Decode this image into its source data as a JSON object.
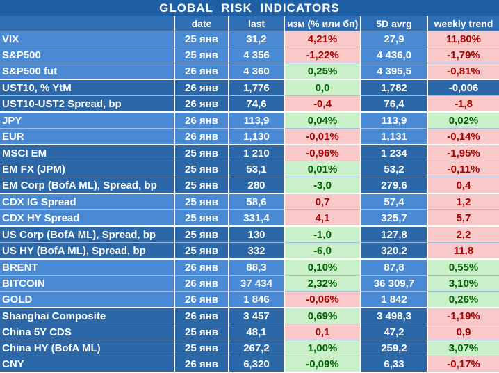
{
  "title": "GLOBAL   RISK   INDICATORS",
  "headers": [
    "",
    "date",
    "last",
    "изм (% или бп)",
    "5D avrg",
    "weekly trend"
  ],
  "rows": [
    {
      "name": "VIX",
      "date": "25 янв",
      "last": "31,2",
      "chg": "4,21%",
      "chg_s": "neg",
      "avg": "27,9",
      "trend": "11,80%",
      "trend_s": "neg",
      "g": "g1",
      "end": false
    },
    {
      "name": "S&P500",
      "date": "25 янв",
      "last": "4 356",
      "chg": "-1,22%",
      "chg_s": "neg",
      "avg": "4 436,0",
      "trend": "-1,79%",
      "trend_s": "neg",
      "g": "g1",
      "end": false
    },
    {
      "name": "S&P500 fut",
      "date": "26 янв",
      "last": "4 360",
      "chg": "0,25%",
      "chg_s": "pos",
      "avg": "4 395,5",
      "trend": "-0,81%",
      "trend_s": "neg",
      "g": "g1",
      "end": true
    },
    {
      "name": "UST10, % YtM",
      "date": "26 янв",
      "last": "1,776",
      "chg": "0,0",
      "chg_s": "pos",
      "avg": "1,782",
      "trend": "-0,006",
      "trend_s": "pl",
      "g": "g2",
      "end": false
    },
    {
      "name": "UST10-UST2 Spread, bp",
      "date": "26 янв",
      "last": "74,6",
      "chg": "-0,4",
      "chg_s": "neg",
      "avg": "76,4",
      "trend": "-1,8",
      "trend_s": "neg",
      "g": "g2",
      "end": true
    },
    {
      "name": "JPY",
      "date": "26 янв",
      "last": "113,9",
      "chg": "0,04%",
      "chg_s": "pos",
      "avg": "113,9",
      "trend": "0,02%",
      "trend_s": "pos",
      "g": "g1",
      "end": false
    },
    {
      "name": "EUR",
      "date": "26 янв",
      "last": "1,130",
      "chg": "-0,01%",
      "chg_s": "neg",
      "avg": "1,131",
      "trend": "-0,14%",
      "trend_s": "neg",
      "g": "g1",
      "end": true
    },
    {
      "name": "MSCI EM",
      "date": "25 янв",
      "last": "1 210",
      "chg": "-0,96%",
      "chg_s": "neg",
      "avg": "1 234",
      "trend": "-1,95%",
      "trend_s": "neg",
      "g": "g2",
      "end": false
    },
    {
      "name": "EM FX (JPM)",
      "date": "25 янв",
      "last": "53,1",
      "chg": "0,01%",
      "chg_s": "pos",
      "avg": "53,2",
      "trend": "-0,11%",
      "trend_s": "neg",
      "g": "g2",
      "end": false
    },
    {
      "name": "EM Corp (BofA ML), Spread, bp",
      "date": "25 янв",
      "last": "280",
      "chg": "-3,0",
      "chg_s": "pos",
      "avg": "279,6",
      "trend": "0,4",
      "trend_s": "neg",
      "g": "g2",
      "end": true
    },
    {
      "name": "CDX IG Spread",
      "date": "25 янв",
      "last": "58,6",
      "chg": "0,7",
      "chg_s": "neg",
      "avg": "57,4",
      "trend": "1,2",
      "trend_s": "neg",
      "g": "g1",
      "end": false
    },
    {
      "name": "CDX HY Spread",
      "date": "25 янв",
      "last": "331,4",
      "chg": "4,1",
      "chg_s": "neg",
      "avg": "325,7",
      "trend": "5,7",
      "trend_s": "neg",
      "g": "g1",
      "end": true
    },
    {
      "name": "US Corp (BofA ML), Spread, bp",
      "date": "25 янв",
      "last": "130",
      "chg": "-1,0",
      "chg_s": "pos",
      "avg": "127,8",
      "trend": "2,2",
      "trend_s": "neg",
      "g": "g2",
      "end": false
    },
    {
      "name": "US HY (BofA ML), Spread, bp",
      "date": "25 янв",
      "last": "332",
      "chg": "-6,0",
      "chg_s": "pos",
      "avg": "320,2",
      "trend": "11,8",
      "trend_s": "neg",
      "g": "g2",
      "end": true
    },
    {
      "name": "BRENT",
      "date": "26 янв",
      "last": "88,3",
      "chg": "0,10%",
      "chg_s": "pos",
      "avg": "87,8",
      "trend": "0,55%",
      "trend_s": "pos",
      "g": "g1",
      "end": false
    },
    {
      "name": "BITCOIN",
      "date": "26 янв",
      "last": "37 434",
      "chg": "2,32%",
      "chg_s": "pos",
      "avg": "36 309,7",
      "trend": "3,10%",
      "trend_s": "pos",
      "g": "g1",
      "end": false
    },
    {
      "name": "GOLD",
      "date": "26 янв",
      "last": "1 846",
      "chg": "-0,06%",
      "chg_s": "neg",
      "avg": "1 842",
      "trend": "0,26%",
      "trend_s": "pos",
      "g": "g1",
      "end": true
    },
    {
      "name": "Shanghai Composite",
      "date": "26 янв",
      "last": "3 457",
      "chg": "0,69%",
      "chg_s": "pos",
      "avg": "3 498,3",
      "trend": "-1,19%",
      "trend_s": "neg",
      "g": "g2",
      "end": false
    },
    {
      "name": "China 5Y CDS",
      "date": "25 янв",
      "last": "48,1",
      "chg": "0,1",
      "chg_s": "neg",
      "avg": "47,2",
      "trend": "0,9",
      "trend_s": "neg",
      "g": "g2",
      "end": false
    },
    {
      "name": "China HY (BofA ML)",
      "date": "25 янв",
      "last": "267,2",
      "chg": "1,00%",
      "chg_s": "pos",
      "avg": "259,2",
      "trend": "3,07%",
      "trend_s": "pos",
      "g": "g2",
      "end": false
    },
    {
      "name": "CNY",
      "date": "26 янв",
      "last": "6,320",
      "chg": "-0,09%",
      "chg_s": "pos",
      "avg": "6,33",
      "trend": "-0,17%",
      "trend_s": "neg",
      "g": "g2",
      "end": true
    }
  ]
}
